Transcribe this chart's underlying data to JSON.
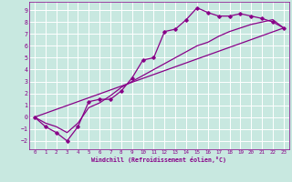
{
  "xlabel": "Windchill (Refroidissement éolien,°C)",
  "xlim": [
    -0.5,
    23.5
  ],
  "ylim": [
    -2.7,
    9.7
  ],
  "xticks": [
    0,
    1,
    2,
    3,
    4,
    5,
    6,
    7,
    8,
    9,
    10,
    11,
    12,
    13,
    14,
    15,
    16,
    17,
    18,
    19,
    20,
    21,
    22,
    23
  ],
  "yticks": [
    -2,
    -1,
    0,
    1,
    2,
    3,
    4,
    5,
    6,
    7,
    8,
    9
  ],
  "bg_color": "#c8e8e0",
  "grid_color": "#ffffff",
  "line_color": "#880088",
  "line1_x": [
    0,
    1,
    2,
    3,
    4,
    5,
    6,
    7,
    8,
    9,
    10,
    11,
    12,
    13,
    14,
    15,
    16,
    17,
    18,
    19,
    20,
    21,
    22,
    23
  ],
  "line1_y": [
    0,
    -0.8,
    -1.3,
    -2.0,
    -0.8,
    1.3,
    1.5,
    1.5,
    2.2,
    3.3,
    4.8,
    5.0,
    7.2,
    7.4,
    8.2,
    9.2,
    8.8,
    8.5,
    8.5,
    8.7,
    8.5,
    8.3,
    8.0,
    7.5
  ],
  "line2_x": [
    0,
    1,
    2,
    3,
    4,
    5,
    6,
    7,
    8,
    9,
    10,
    11,
    12,
    13,
    14,
    15,
    16,
    17,
    18,
    19,
    20,
    21,
    22,
    23
  ],
  "line2_y": [
    0,
    -0.5,
    -0.8,
    -1.3,
    -0.5,
    0.8,
    1.2,
    1.8,
    2.5,
    3.0,
    3.5,
    4.0,
    4.5,
    5.0,
    5.5,
    6.0,
    6.3,
    6.8,
    7.2,
    7.5,
    7.8,
    8.0,
    8.2,
    7.5
  ],
  "line3_x": [
    0,
    23
  ],
  "line3_y": [
    0,
    7.5
  ]
}
